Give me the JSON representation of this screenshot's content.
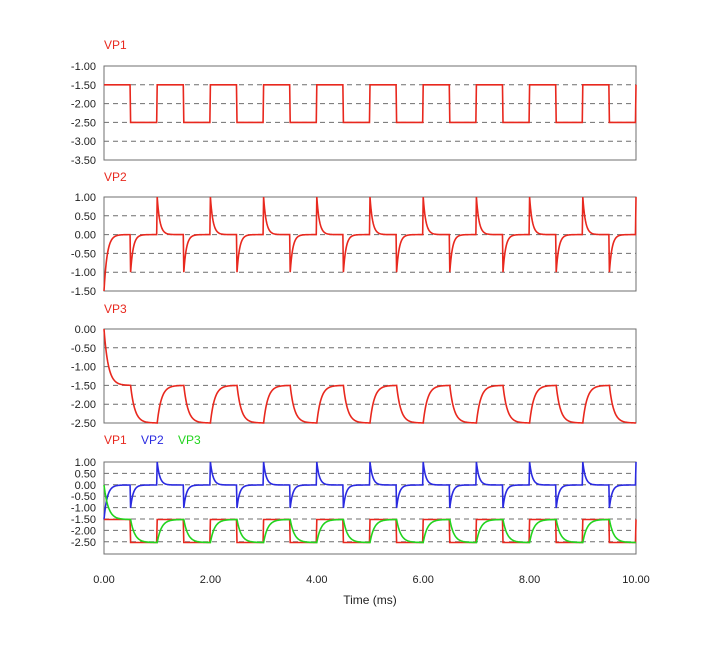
{
  "chart_data": [
    {
      "type": "line",
      "title": "VP1",
      "x_range": [
        0,
        10
      ],
      "ylim": [
        -3.5,
        -1.0
      ],
      "ytick_labels": [
        "-1.00",
        "-1.50",
        "-2.00",
        "-2.50",
        "-3.00",
        "-3.50"
      ],
      "ytick_values": [
        -1.0,
        -1.5,
        -2.0,
        -2.5,
        -3.0,
        -3.5
      ],
      "grid": true,
      "series": [
        {
          "name": "VP1",
          "color": "#e8281e",
          "waveform": "square",
          "period_ms": 1.0,
          "high": -1.5,
          "low": -2.5,
          "high_duration_ms": 0.5
        }
      ]
    },
    {
      "type": "line",
      "title": "VP2",
      "x_range": [
        0,
        10
      ],
      "ylim": [
        -1.5,
        1.0
      ],
      "ytick_labels": [
        "1.00",
        "0.50",
        "0.00",
        "-0.50",
        "-1.00",
        "-1.50"
      ],
      "ytick_values": [
        1.0,
        0.5,
        0.0,
        -0.5,
        -1.0,
        -1.5
      ],
      "grid": true,
      "series": [
        {
          "name": "VP2",
          "color": "#e8281e",
          "waveform": "rc-differentiated square",
          "period_ms": 1.0,
          "initial_value": -1.5,
          "rising_peak": 1.0,
          "falling_peak": -1.0,
          "settle_value": 0.0
        }
      ]
    },
    {
      "type": "line",
      "title": "VP3",
      "x_range": [
        0,
        10
      ],
      "ylim": [
        -2.5,
        0.0
      ],
      "ytick_labels": [
        "0.00",
        "-0.50",
        "-1.00",
        "-1.50",
        "-2.00",
        "-2.50"
      ],
      "ytick_values": [
        0.0,
        -0.5,
        -1.0,
        -1.5,
        -2.0,
        -2.5
      ],
      "grid": true,
      "series": [
        {
          "name": "VP3",
          "color": "#e8281e",
          "waveform": "rc-integrated square",
          "period_ms": 1.0,
          "initial_value": 0.0,
          "high": -1.5,
          "low": -2.5
        }
      ]
    },
    {
      "type": "line",
      "title": "",
      "x_range": [
        0,
        10
      ],
      "ylim": [
        -3.0,
        1.0
      ],
      "ytick_labels": [
        "1.00",
        "0.50",
        "0.00",
        "-0.50",
        "-1.00",
        "-1.50",
        "-2.00",
        "-2.50"
      ],
      "ytick_values": [
        1.0,
        0.5,
        0.0,
        -0.5,
        -1.0,
        -1.5,
        -2.0,
        -2.5
      ],
      "grid": true,
      "xlabel": "Time (ms)",
      "xtick_labels": [
        "0.00",
        "2.00",
        "4.00",
        "6.00",
        "8.00",
        "10.00"
      ],
      "xtick_values": [
        0,
        2,
        4,
        6,
        8,
        10
      ],
      "legend": [
        {
          "label": "VP1",
          "color": "#e8281e"
        },
        {
          "label": "VP2",
          "color": "#2a2ae0"
        },
        {
          "label": "VP3",
          "color": "#22d41e"
        }
      ],
      "series": [
        {
          "name": "VP1",
          "color": "#e8281e"
        },
        {
          "name": "VP2",
          "color": "#2a2ae0"
        },
        {
          "name": "VP3",
          "color": "#22d41e"
        }
      ]
    }
  ]
}
